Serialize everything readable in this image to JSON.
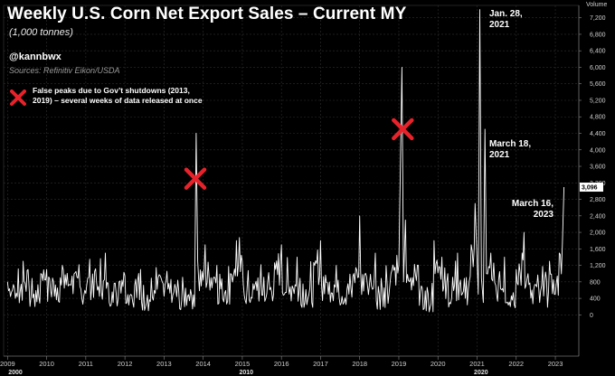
{
  "header": {
    "title": "Weekly U.S. Corn Net Export Sales – Current MY",
    "subtitle": "(1,000 tonnes)",
    "handle": "@kannbwx",
    "source": "Sources: Refinitiv Eikon/USDA"
  },
  "legend_note": {
    "text": "False peaks due to Gov’t shutdowns (2013, 2019) – several weeks of data released at once",
    "marker_color": "#e8222a"
  },
  "annotations": {
    "jan28": "Jan. 28, 2021",
    "march18": "March 18, 2021",
    "march16": "March 16, 2023"
  },
  "volume_label": "Volume",
  "chart_data": {
    "type": "line",
    "title": "Weekly U.S. Corn Net Export Sales – Current MY",
    "subtitle": "(1,000 tonnes)",
    "ylabel": "",
    "ylim": [
      -1000,
      7500
    ],
    "yticks": [
      0,
      400,
      800,
      1200,
      1600,
      2000,
      2400,
      2800,
      3200,
      3600,
      4000,
      4400,
      4800,
      5200,
      5600,
      6000,
      6400,
      6800,
      7200
    ],
    "ytick_labels": [
      "0",
      "400",
      "800",
      "1,200",
      "1,600",
      "2,000",
      "2,400",
      "2,800",
      "3,200",
      "3,600",
      "4,000",
      "4,400",
      "4,800",
      "5,200",
      "5,600",
      "6,000",
      "6,400",
      "6,800",
      "7,200"
    ],
    "xlim": [
      2008.9,
      2023.6
    ],
    "xticks": [
      2009,
      2010,
      2011,
      2012,
      2013,
      2014,
      2015,
      2016,
      2017,
      2018,
      2019,
      2020,
      2021,
      2022,
      2023
    ],
    "decade_labels": [
      {
        "x": 2009.2,
        "label": "2000"
      },
      {
        "x": 2015.1,
        "label": "2010"
      },
      {
        "x": 2021.1,
        "label": "2020"
      }
    ],
    "grid": true,
    "line_color": "#ffffff",
    "last_value": 3096,
    "last_value_label": "3,096",
    "shutdown_markers": [
      {
        "x": 2013.8,
        "y": 3300
      },
      {
        "x": 2019.1,
        "y": 4500
      }
    ],
    "series": [
      {
        "x": [
          2009.0,
          2009.2,
          2009.4,
          2009.55,
          2009.7,
          2009.85,
          2010.0,
          2010.2,
          2010.4,
          2010.55,
          2010.75,
          2010.9,
          2011.1,
          2011.3,
          2011.5,
          2011.7,
          2011.85,
          2012.0,
          2012.2,
          2012.4,
          2012.6,
          2012.8,
          2013.0,
          2013.2,
          2013.4,
          2013.6,
          2013.78,
          2013.82,
          2013.86,
          2013.95,
          2014.05,
          2014.2,
          2014.35,
          2014.5,
          2014.7,
          2014.85,
          2015.0,
          2015.2,
          2015.4,
          2015.6,
          2015.85,
          2016.0,
          2016.2,
          2016.4,
          2016.6,
          2016.85,
          2017.0,
          2017.2,
          2017.4,
          2017.6,
          2017.85,
          2018.0,
          2018.2,
          2018.4,
          2018.6,
          2018.8,
          2019.0,
          2019.08,
          2019.12,
          2019.17,
          2019.3,
          2019.5,
          2019.7,
          2019.9,
          2020.1,
          2020.3,
          2020.5,
          2020.7,
          2020.85,
          2020.95,
          2021.03,
          2021.07,
          2021.11,
          2021.16,
          2021.2,
          2021.24,
          2021.35,
          2021.5,
          2021.7,
          2021.85,
          2022.0,
          2022.2,
          2022.4,
          2022.6,
          2022.85,
          2023.0,
          2023.1,
          2023.18,
          2023.22
        ],
        "y": [
          800,
          400,
          1300,
          700,
          200,
          1000,
          1100,
          450,
          1200,
          700,
          1050,
          400,
          1350,
          600,
          1500,
          300,
          800,
          950,
          300,
          1100,
          100,
          1150,
          450,
          300,
          150,
          450,
          200,
          4400,
          1300,
          700,
          1700,
          900,
          1200,
          400,
          1000,
          1800,
          1300,
          300,
          900,
          400,
          1100,
          1700,
          500,
          1400,
          300,
          1200,
          1800,
          500,
          1200,
          300,
          1000,
          2400,
          700,
          1500,
          200,
          1000,
          1200,
          6000,
          800,
          2300,
          900,
          1200,
          100,
          1800,
          1400,
          300,
          1500,
          400,
          1700,
          2700,
          500,
          7400,
          900,
          300,
          4500,
          1000,
          1500,
          500,
          1400,
          200,
          1100,
          2000,
          600,
          300,
          1300,
          500,
          1500,
          1700,
          3096
        ]
      }
    ]
  }
}
